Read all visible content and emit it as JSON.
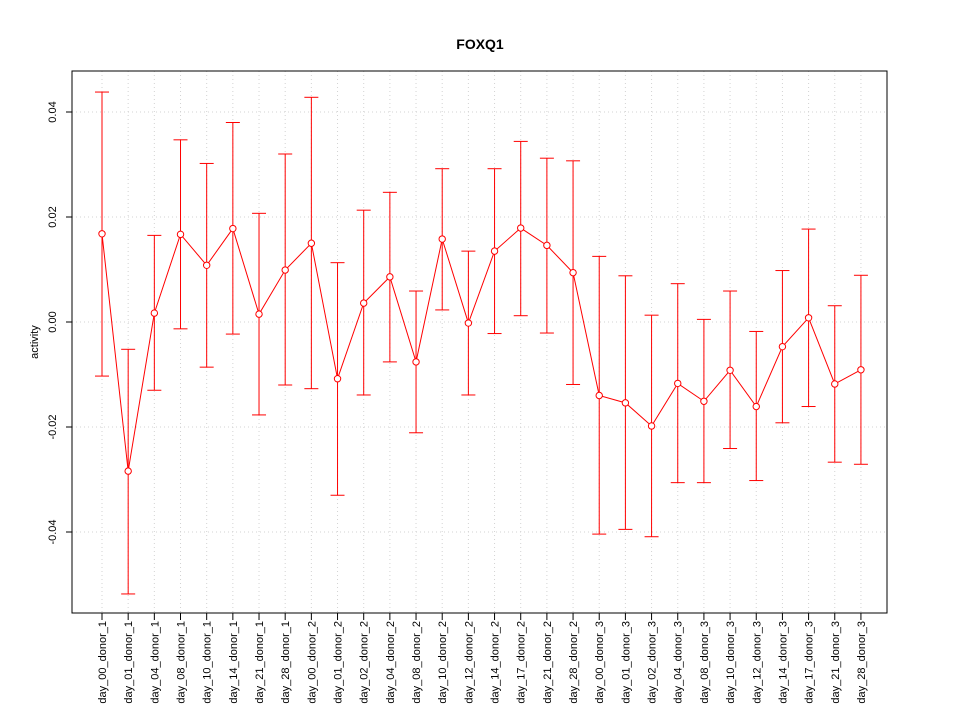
{
  "chart_data": {
    "type": "line",
    "title": "FOXQ1",
    "xlabel": "",
    "ylabel": "activity",
    "ylim": [
      -0.056,
      0.0475
    ],
    "yticks": [
      -0.04,
      -0.02,
      0.0,
      0.02,
      0.04
    ],
    "ytick_labels": [
      "-0.04",
      "-0.02",
      "0.00",
      "0.02",
      "0.04"
    ],
    "grid": true,
    "color": "#ff0000",
    "categories": [
      "day_00_donor_1",
      "day_01_donor_1",
      "day_04_donor_1",
      "day_08_donor_1",
      "day_10_donor_1",
      "day_14_donor_1",
      "day_21_donor_1",
      "day_28_donor_1",
      "day_00_donor_2",
      "day_01_donor_2",
      "day_02_donor_2",
      "day_04_donor_2",
      "day_08_donor_2",
      "day_10_donor_2",
      "day_12_donor_2",
      "day_14_donor_2",
      "day_17_donor_2",
      "day_21_donor_2",
      "day_28_donor_2",
      "day_00_donor_3",
      "day_01_donor_3",
      "day_02_donor_3",
      "day_04_donor_3",
      "day_08_donor_3",
      "day_10_donor_3",
      "day_12_donor_3",
      "day_14_donor_3",
      "day_17_donor_3",
      "day_21_donor_3",
      "day_28_donor_3"
    ],
    "values": [
      0.0168,
      -0.0284,
      0.0017,
      0.0167,
      0.0108,
      0.0178,
      0.0015,
      0.0099,
      0.015,
      -0.0108,
      0.0036,
      0.0086,
      -0.0076,
      0.0158,
      -0.0002,
      0.0135,
      0.0179,
      0.0146,
      0.0094,
      -0.014,
      -0.0154,
      -0.0198,
      -0.0117,
      -0.0151,
      -0.0092,
      -0.0161,
      -0.0047,
      0.0008,
      -0.0118,
      -0.0091
    ],
    "upper": [
      0.0438,
      -0.0052,
      0.0165,
      0.0347,
      0.0302,
      0.038,
      0.0207,
      0.032,
      0.0428,
      0.0113,
      0.0213,
      0.0247,
      0.0059,
      0.0292,
      0.0135,
      0.0292,
      0.0344,
      0.0312,
      0.0307,
      0.0125,
      0.0088,
      0.0013,
      0.0073,
      0.0005,
      0.0059,
      -0.0018,
      0.0098,
      0.0177,
      0.0031,
      0.0089
    ],
    "lower": [
      -0.0103,
      -0.0518,
      -0.013,
      -0.0013,
      -0.0086,
      -0.0023,
      -0.0177,
      -0.012,
      -0.0127,
      -0.033,
      -0.0139,
      -0.0076,
      -0.0211,
      0.0023,
      -0.0139,
      -0.0022,
      0.0012,
      -0.0021,
      -0.0119,
      -0.0404,
      -0.0395,
      -0.0409,
      -0.0306,
      -0.0306,
      -0.0241,
      -0.0302,
      -0.0192,
      -0.0161,
      -0.0267,
      -0.0271
    ]
  }
}
